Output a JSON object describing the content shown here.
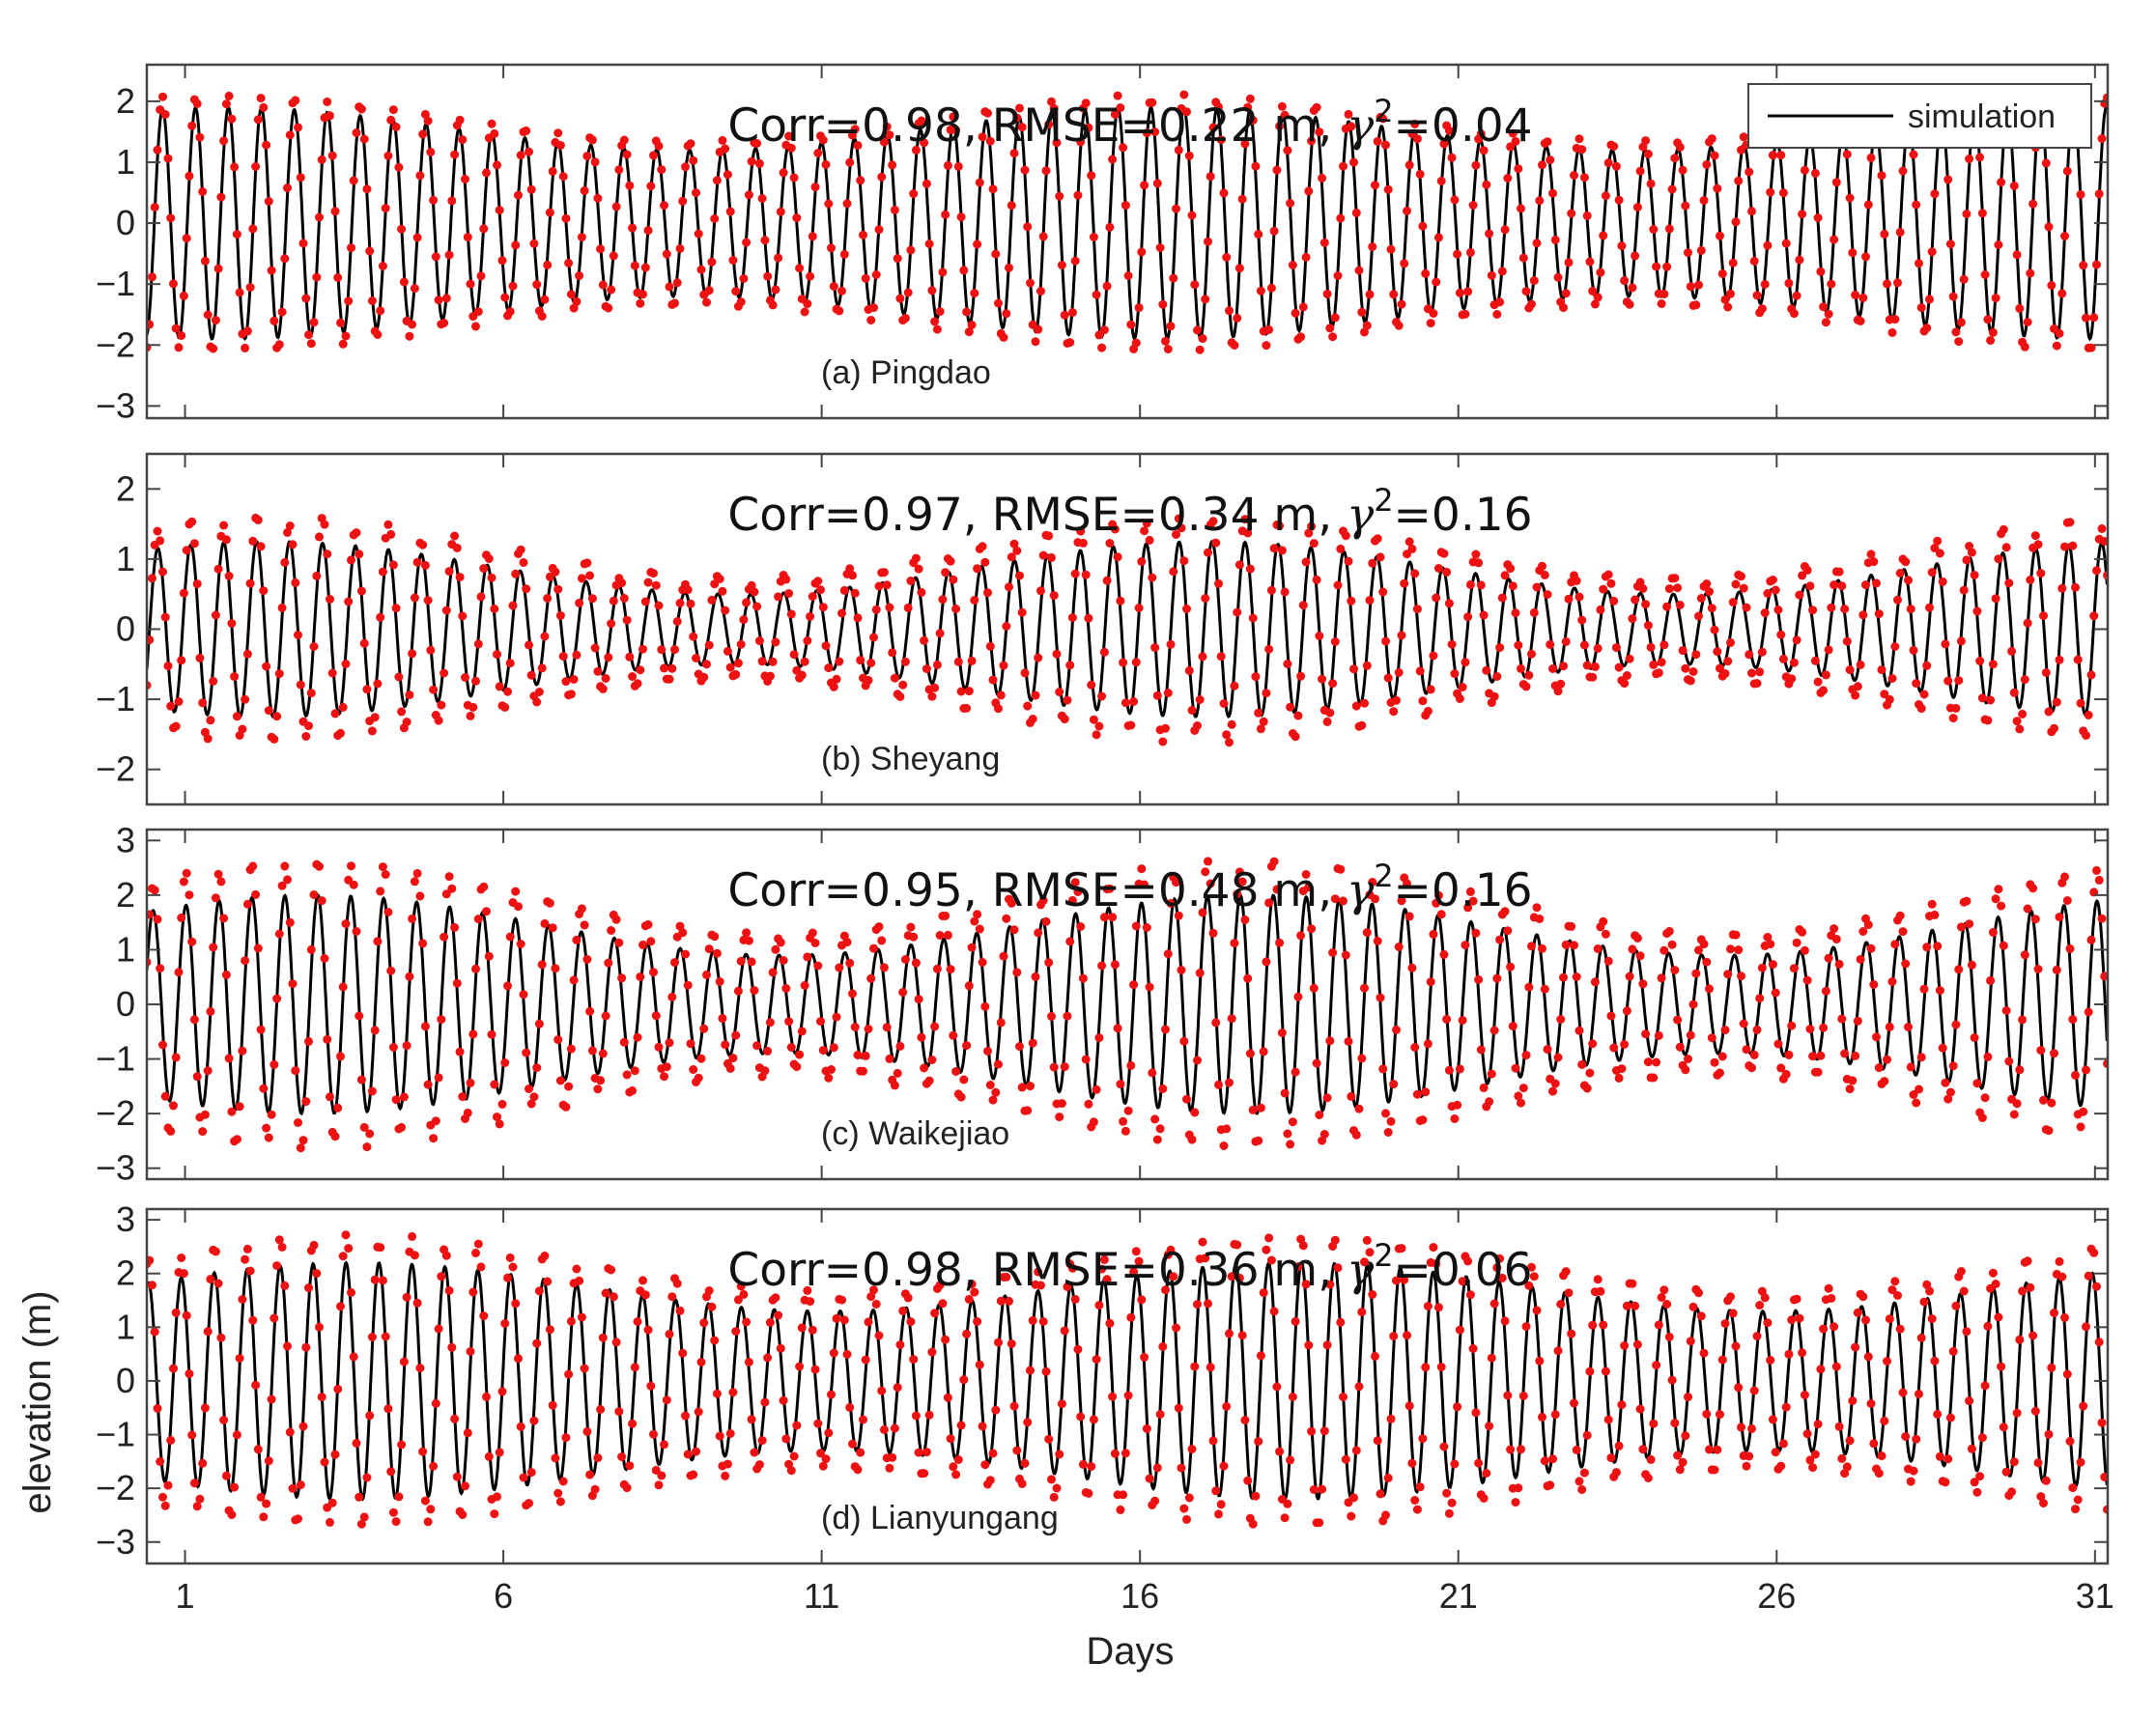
{
  "chart_data": {
    "type": "line",
    "xlabel": "Days",
    "ylabel": "elevation (m)",
    "xlim": [
      0.4,
      31.2
    ],
    "xticks": [
      1,
      6,
      11,
      16,
      21,
      26,
      31
    ],
    "legend": {
      "entries": [
        "simulation"
      ],
      "placement": "top-right"
    },
    "colors": {
      "simulation": "#000000",
      "observation": "#ee1111"
    },
    "panels": [
      {
        "id": "a",
        "label": "(a) Pingdao",
        "stats_prefix": "Corr=0.98, RMSE=0.22 m, ",
        "stats_symbol": "γ",
        "stats_exp": "2",
        "stats_suffix": "=0.04",
        "ylim": [
          -3.2,
          2.6
        ],
        "yticks": [
          -3,
          -2,
          -1,
          0,
          1,
          2
        ],
        "sim_amp_range": [
          1.2,
          1.9
        ],
        "obs_offset": 0.2
      },
      {
        "id": "b",
        "label": "(b) Sheyang",
        "stats_prefix": "Corr=0.97, RMSE=0.34 m, ",
        "stats_symbol": "γ",
        "stats_exp": "2",
        "stats_suffix": "=0.16",
        "ylim": [
          -2.5,
          2.5
        ],
        "yticks": [
          -2,
          -1,
          0,
          1,
          2
        ],
        "sim_amp_range": [
          0.5,
          1.25
        ],
        "obs_offset": 0.45
      },
      {
        "id": "c",
        "label": "(c) Waikejiao",
        "stats_prefix": "Corr=0.95, RMSE=0.48 m, ",
        "stats_symbol": "γ",
        "stats_exp": "2",
        "stats_suffix": "=0.16",
        "ylim": [
          -3.2,
          3.2
        ],
        "yticks": [
          -3,
          -2,
          -1,
          0,
          1,
          2,
          3
        ],
        "sim_amp_range": [
          0.9,
          2.0
        ],
        "obs_offset": 0.6
      },
      {
        "id": "d",
        "label": "(d) Lianyungang",
        "stats_prefix": "Corr=0.98, RMSE=0.36 m, ",
        "stats_symbol": "γ",
        "stats_exp": "2",
        "stats_suffix": "=0.06",
        "ylim": [
          -3.4,
          3.2
        ],
        "yticks": [
          -3,
          -2,
          -1,
          0,
          1,
          2,
          3
        ],
        "sim_amp_range": [
          1.3,
          2.2
        ],
        "obs_offset": 0.45
      }
    ]
  }
}
